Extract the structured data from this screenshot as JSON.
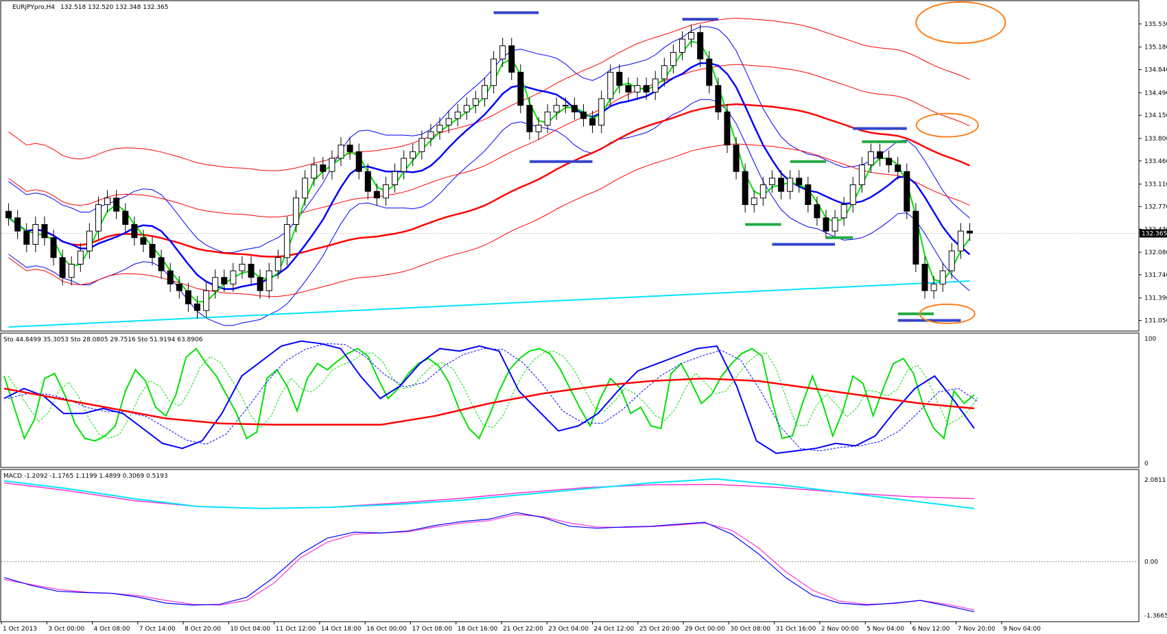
{
  "chart_data": {
    "type": "candlestick",
    "symbol_header": "EURJPYpro,H4",
    "ohlc_header": "132.518 132.520 132.348 132.365",
    "price_axis": {
      "ylim": [
        130.9,
        135.85
      ],
      "ticks": [
        "135.530",
        "135.180",
        "134.840",
        "134.490",
        "134.150",
        "133.800",
        "133.460",
        "133.110",
        "132.770",
        "132.430",
        "132.080",
        "131.740",
        "131.390",
        "131.050"
      ],
      "current_price": "132.365"
    },
    "x_axis_labels": [
      "1 Oct 2013",
      "3 Oct 00:00",
      "4 Oct 08:00",
      "7 Oct 14:00",
      "8 Oct 20:00",
      "10 Oct 04:00",
      "11 Oct 12:00",
      "14 Oct 18:00",
      "16 Oct 00:00",
      "17 Oct 08:00",
      "18 Oct 16:00",
      "21 Oct 22:00",
      "23 Oct 04:00",
      "24 Oct 12:00",
      "25 Oct 20:00",
      "29 Oct 00:00",
      "30 Oct 08:00",
      "31 Oct 16:00",
      "2 Nov 00:00",
      "5 Nov 04:00",
      "6 Nov 12:00",
      "7 Nov 20:00",
      "9 Nov 04:00"
    ],
    "closes": [
      132.6,
      132.4,
      132.2,
      132.5,
      132.3,
      132.0,
      131.7,
      131.9,
      132.1,
      132.4,
      132.8,
      132.9,
      132.7,
      132.5,
      132.3,
      132.2,
      132.0,
      131.8,
      131.6,
      131.5,
      131.3,
      131.2,
      131.5,
      131.7,
      131.6,
      131.8,
      131.9,
      131.7,
      131.5,
      131.8,
      132.0,
      132.5,
      132.9,
      133.2,
      133.4,
      133.3,
      133.5,
      133.7,
      133.6,
      133.3,
      133.0,
      132.9,
      133.1,
      133.3,
      133.5,
      133.6,
      133.8,
      133.9,
      134.0,
      134.1,
      134.2,
      134.3,
      134.4,
      134.6,
      135.0,
      135.2,
      134.8,
      134.3,
      133.9,
      134.0,
      134.2,
      134.3,
      134.3,
      134.2,
      134.1,
      134.0,
      134.4,
      134.8,
      134.6,
      134.5,
      134.6,
      134.5,
      134.7,
      134.9,
      135.1,
      135.3,
      135.4,
      135.0,
      134.6,
      134.2,
      133.7,
      133.3,
      132.8,
      132.9,
      133.1,
      133.2,
      133.0,
      133.2,
      133.1,
      132.8,
      132.6,
      132.4,
      132.6,
      132.8,
      133.1,
      133.4,
      133.6,
      133.5,
      133.4,
      133.3,
      132.7,
      131.9,
      131.5,
      131.6,
      131.8,
      132.1,
      132.4,
      132.37
    ],
    "overlay_lines": [
      {
        "color": "#00e000",
        "kind": "fast moving average"
      },
      {
        "color": "#0000ff",
        "kind": "moving average"
      },
      {
        "color": "#ff0000",
        "kind": "moving average"
      },
      {
        "color": "#0000ff",
        "kind": "bollinger bands"
      },
      {
        "color": "#ff0000",
        "kind": "bollinger bands"
      },
      {
        "color": "#00e5ff",
        "kind": "long moving average"
      }
    ],
    "stochastic": {
      "header": "Sto 44.8499 35.3053  Sto 28.0805 29.7516  Sto 51.9194 63.8906",
      "ylim": [
        0,
        100
      ],
      "ticks": [
        "100",
        "0"
      ],
      "series": [
        {
          "color": "#00e000",
          "values": [
            70,
            45,
            20,
            35,
            68,
            72,
            55,
            32,
            20,
            18,
            22,
            30,
            58,
            75,
            66,
            45,
            38,
            55,
            85,
            92,
            80,
            70,
            55,
            40,
            20,
            25,
            68,
            75,
            62,
            42,
            68,
            80,
            75,
            82,
            88,
            92,
            86,
            68,
            52,
            60,
            72,
            80,
            84,
            78,
            65,
            44,
            28,
            20,
            38,
            58,
            75,
            84,
            90,
            92,
            88,
            76,
            60,
            44,
            30,
            52,
            68,
            60,
            40,
            45,
            30,
            28,
            72,
            80,
            65,
            48,
            55,
            70,
            80,
            88,
            92,
            86,
            50,
            20,
            22,
            48,
            70,
            48,
            22,
            42,
            70,
            64,
            38,
            60,
            80,
            84,
            72,
            45,
            28,
            20,
            58,
            48,
            55
          ]
        },
        {
          "color": "#0000ff",
          "values": [
            52,
            60,
            54,
            40,
            40,
            44,
            40,
            28,
            16,
            12,
            18,
            40,
            70,
            82,
            94,
            98,
            96,
            92,
            70,
            52,
            62,
            80,
            92,
            90,
            94,
            90,
            58,
            42,
            26,
            30,
            40,
            58,
            74,
            80,
            86,
            92,
            94,
            62,
            18,
            8,
            10,
            12,
            16,
            14,
            22,
            42,
            60,
            70,
            50,
            28
          ]
        }
      ]
    },
    "macd": {
      "header": "MACD -1.2092 -1.1765 1.1199 1.4899 0.3069 0.5193",
      "ylim": [
        -1.45,
        2.2
      ],
      "ticks": [
        "2.0811",
        "0.00",
        "-1.3665"
      ],
      "main_line": [
        -0.4,
        -0.6,
        -0.75,
        -0.78,
        -0.8,
        -0.9,
        -1.05,
        -1.1,
        -1.08,
        -0.9,
        -0.4,
        0.2,
        0.6,
        0.75,
        0.73,
        0.78,
        0.92,
        1.02,
        1.08,
        1.25,
        1.12,
        0.9,
        0.85,
        0.88,
        0.9,
        0.95,
        1.0,
        0.7,
        0.2,
        -0.4,
        -0.85,
        -1.05,
        -1.1,
        -1.05,
        -0.98,
        -1.12,
        -1.27
      ],
      "signal_line": [
        -0.45,
        -0.58,
        -0.7,
        -0.77,
        -0.8,
        -0.86,
        -0.98,
        -1.08,
        -1.1,
        -0.98,
        -0.55,
        0.1,
        0.5,
        0.7,
        0.73,
        0.76,
        0.88,
        0.98,
        1.04,
        1.2,
        1.14,
        0.98,
        0.88,
        0.87,
        0.89,
        0.93,
        0.98,
        0.8,
        0.35,
        -0.25,
        -0.72,
        -1.0,
        -1.08,
        -1.06,
        -0.98,
        -1.08,
        -1.22
      ],
      "slow_cyan": [
        2.05,
        1.85,
        1.6,
        1.4,
        1.35,
        1.38,
        1.45,
        1.55,
        1.7,
        1.85,
        2.0,
        2.1,
        1.95,
        1.75,
        1.55,
        1.35
      ],
      "slow_magenta": [
        2.0,
        1.8,
        1.55,
        1.4,
        1.35,
        1.38,
        1.48,
        1.6,
        1.75,
        1.88,
        1.95,
        1.96,
        1.88,
        1.75,
        1.65,
        1.6
      ]
    }
  },
  "colors": {
    "bull_body": "#ffffff",
    "bear_body": "#000000",
    "support_resistance_blue": "#3344cc",
    "support_resistance_green": "#22aa44",
    "highlight_circle": "#ff7f1a",
    "grid": "#000000"
  }
}
